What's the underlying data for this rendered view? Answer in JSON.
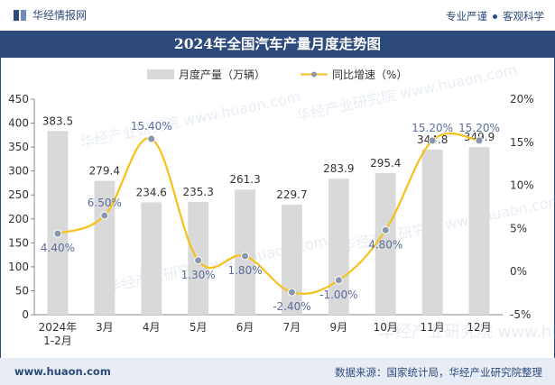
{
  "header": {
    "brand": "华经情报网",
    "slogan_left": "专业严谨",
    "slogan_right": "客观科学"
  },
  "watermark": "华经产业研究院 www.huaon.com",
  "footer": {
    "website": "www.huaon.com",
    "source": "数据来源：国家统计局，华经产业研究院整理"
  },
  "colors": {
    "bar": "#d9d9d9",
    "line": "#f5c11a",
    "marker": "#8a96ad",
    "accent": "#2c4a7c",
    "growth_label": "#5a6e9a"
  },
  "chart_data": {
    "type": "bar",
    "title": "2024年全国汽车产量月度走势图",
    "categories": [
      "2024年\n1-2月",
      "3月",
      "4月",
      "5月",
      "6月",
      "7月",
      "9月",
      "10月",
      "11月",
      "12月"
    ],
    "series": [
      {
        "name": "月度产量（万辆）",
        "type": "bar",
        "axis": "left",
        "values": [
          383.5,
          279.4,
          234.6,
          235.3,
          261.3,
          229.7,
          283.9,
          295.4,
          344.8,
          349.9
        ],
        "labels": [
          "383.5",
          "279.4",
          "234.6",
          "235.3",
          "261.3",
          "229.7",
          "283.9",
          "295.4",
          "344.8",
          "349.9"
        ]
      },
      {
        "name": "同比增速（%）",
        "type": "line",
        "axis": "right",
        "values": [
          4.4,
          6.5,
          15.4,
          1.3,
          1.8,
          -2.4,
          -1.0,
          4.8,
          15.2,
          15.2
        ],
        "labels": [
          "4.40%",
          "6.50%",
          "15.40%",
          "1.30%",
          "1.80%",
          "-2.40%",
          "-1.00%",
          "4.80%",
          "15.20%",
          "15.20%"
        ]
      }
    ],
    "yleft": {
      "min": 0,
      "max": 450,
      "ticks": [
        "0",
        "50",
        "100",
        "150",
        "200",
        "250",
        "300",
        "350",
        "400",
        "450"
      ]
    },
    "yright": {
      "min": -5,
      "max": 20,
      "ticks": [
        "-5%",
        "0%",
        "5%",
        "10%",
        "15%",
        "20%"
      ]
    },
    "legend_position": "top-center",
    "grid": false
  }
}
